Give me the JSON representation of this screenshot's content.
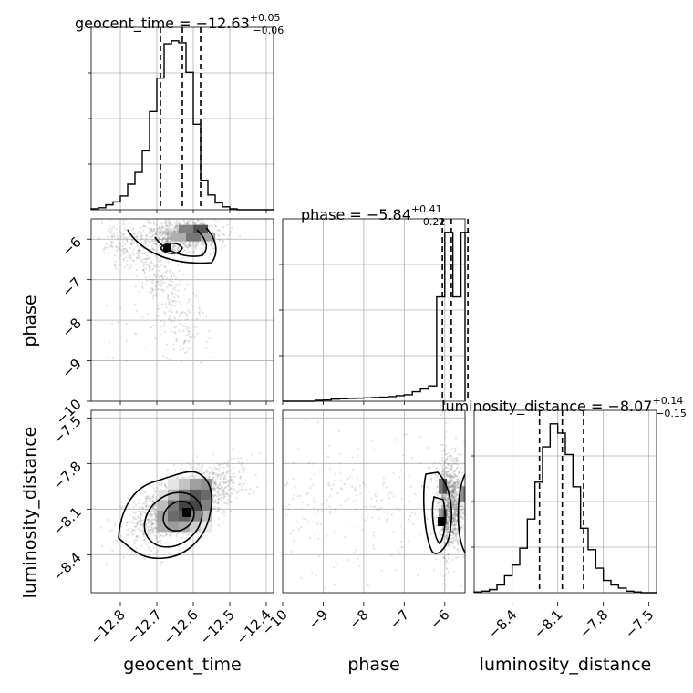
{
  "chart_data": {
    "type": "corner",
    "parameters": [
      "geocent_time",
      "phase",
      "luminosity_distance"
    ],
    "marginals": [
      {
        "name": "geocent_time",
        "title_prefix": "geocent_time = ",
        "median": "−12.63",
        "plus": "+0.05",
        "minus": "−0.06",
        "quantiles": [
          -12.69,
          -12.63,
          -12.58
        ],
        "range": [
          -12.88,
          -12.38
        ],
        "bins": [
          -12.88,
          -12.86,
          -12.84,
          -12.82,
          -12.8,
          -12.78,
          -12.76,
          -12.74,
          -12.72,
          -12.7,
          -12.68,
          -12.66,
          -12.64,
          -12.62,
          -12.6,
          -12.58,
          -12.56,
          -12.54,
          -12.52,
          -12.5,
          -12.48,
          -12.46,
          -12.44,
          -12.42,
          -12.4,
          -12.38
        ],
        "counts": [
          1,
          2,
          5,
          8,
          14,
          26,
          38,
          60,
          100,
          134,
          169,
          172,
          170,
          140,
          87,
          30,
          15,
          7,
          3,
          1,
          0,
          0,
          0,
          0,
          0
        ]
      },
      {
        "name": "phase",
        "title_prefix": "phase = ",
        "median": "−5.84",
        "plus": "+0.41",
        "minus": "−0.22",
        "quantiles": [
          -6.06,
          -5.84,
          -5.43
        ],
        "range": [
          -10.0,
          -5.3
        ],
        "bins": [
          -10.0,
          -9.8,
          -9.6,
          -9.4,
          -9.2,
          -9.0,
          -8.8,
          -8.6,
          -8.4,
          -8.2,
          -8.0,
          -7.8,
          -7.6,
          -7.4,
          -7.2,
          -7.0,
          -6.8,
          -6.6,
          -6.4,
          -6.2,
          -6.0,
          -5.8,
          -5.6,
          -5.4,
          -5.3
        ],
        "counts": [
          0,
          0,
          0,
          0,
          0.3,
          0.4,
          0.7,
          0.8,
          0.9,
          1,
          1.1,
          1.2,
          1.3,
          1.5,
          1.8,
          2.1,
          3.1,
          4,
          5,
          34,
          55,
          34,
          55,
          55
        ]
      },
      {
        "name": "luminosity_distance",
        "title_prefix": "luminosity_distance = ",
        "median": "−8.07",
        "plus": "+0.14",
        "minus": "−0.15",
        "quantiles": [
          -8.22,
          -8.07,
          -7.93
        ],
        "range": [
          -8.65,
          -7.45
        ],
        "bins": [
          -8.65,
          -8.6,
          -8.55,
          -8.5,
          -8.45,
          -8.4,
          -8.35,
          -8.3,
          -8.25,
          -8.2,
          -8.15,
          -8.1,
          -8.05,
          -8.0,
          -7.95,
          -7.9,
          -7.85,
          -7.8,
          -7.75,
          -7.7,
          -7.65,
          -7.6,
          -7.55,
          -7.5,
          -7.45
        ],
        "counts": [
          0.5,
          1,
          2,
          5,
          11,
          18,
          29,
          48,
          72,
          95,
          110,
          104,
          90,
          69,
          42,
          28,
          16,
          8,
          5,
          3,
          1,
          0.5,
          0,
          0
        ]
      }
    ],
    "axis_labels": {
      "geocent_time": "geocent_time",
      "phase": "phase",
      "luminosity_distance": "luminosity_distance"
    },
    "ticks": {
      "geocent_time": {
        "values": [
          -12.8,
          -12.7,
          -12.6,
          -12.5,
          -12.4
        ],
        "labels": [
          "−12.8",
          "−12.7",
          "−12.6",
          "−12.5",
          "−12.4"
        ]
      },
      "phase": {
        "values": [
          -10,
          -9,
          -8,
          -7,
          -6
        ],
        "labels": [
          "−10",
          "−9",
          "−8",
          "−7",
          "−6"
        ]
      },
      "luminosity_distance": {
        "values": [
          -8.4,
          -8.1,
          -7.8,
          -7.5
        ],
        "labels": [
          "−8.4",
          "−8.1",
          "−7.8",
          "−7.5"
        ]
      }
    },
    "grid": true,
    "colors": {
      "line": "#000000",
      "scatter": "#808080",
      "grid": "#b0b0b0"
    }
  }
}
